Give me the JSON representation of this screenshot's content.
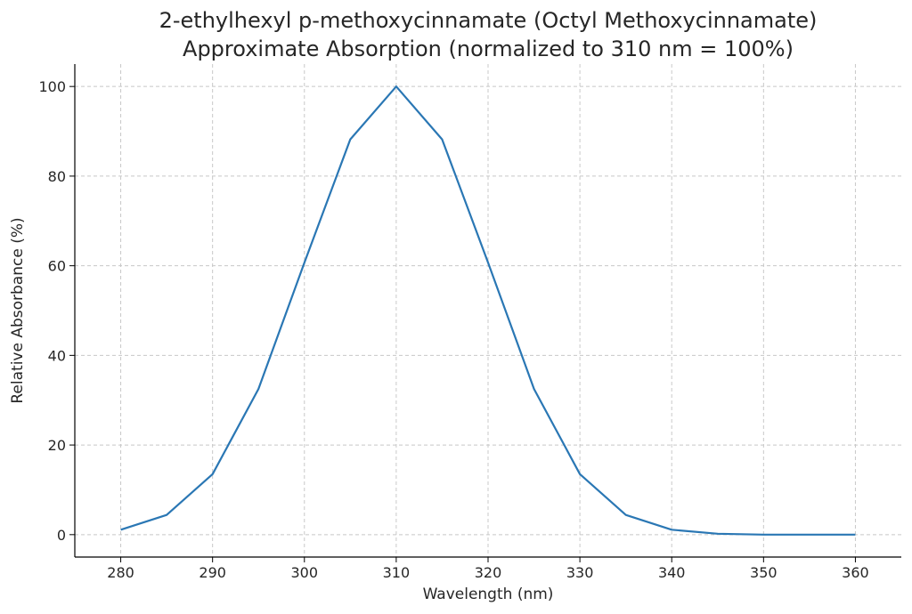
{
  "chart_data": {
    "type": "line",
    "title_lines": [
      "2-ethylhexyl p-methoxycinnamate (Octyl Methoxycinnamate)",
      "Approximate Absorption (normalized to 310 nm = 100%)"
    ],
    "xlabel": "Wavelength (nm)",
    "ylabel": "Relative Absorbance (%)",
    "xlim": [
      275,
      365
    ],
    "ylim": [
      -5,
      105
    ],
    "xticks": [
      280,
      290,
      300,
      310,
      320,
      330,
      340,
      350,
      360
    ],
    "yticks": [
      0,
      20,
      40,
      60,
      80,
      100
    ],
    "grid": true,
    "series": [
      {
        "color": "#2a77b4",
        "x": [
          280,
          285,
          290,
          295,
          300,
          305,
          310,
          315,
          320,
          325,
          330,
          335,
          340,
          345,
          350,
          355,
          360
        ],
        "y": [
          1.1,
          4.4,
          13.5,
          32.5,
          60.7,
          88.2,
          100,
          88.2,
          60.7,
          32.5,
          13.5,
          4.4,
          1.1,
          0.2,
          0.0,
          0.0,
          0.0
        ]
      }
    ]
  }
}
